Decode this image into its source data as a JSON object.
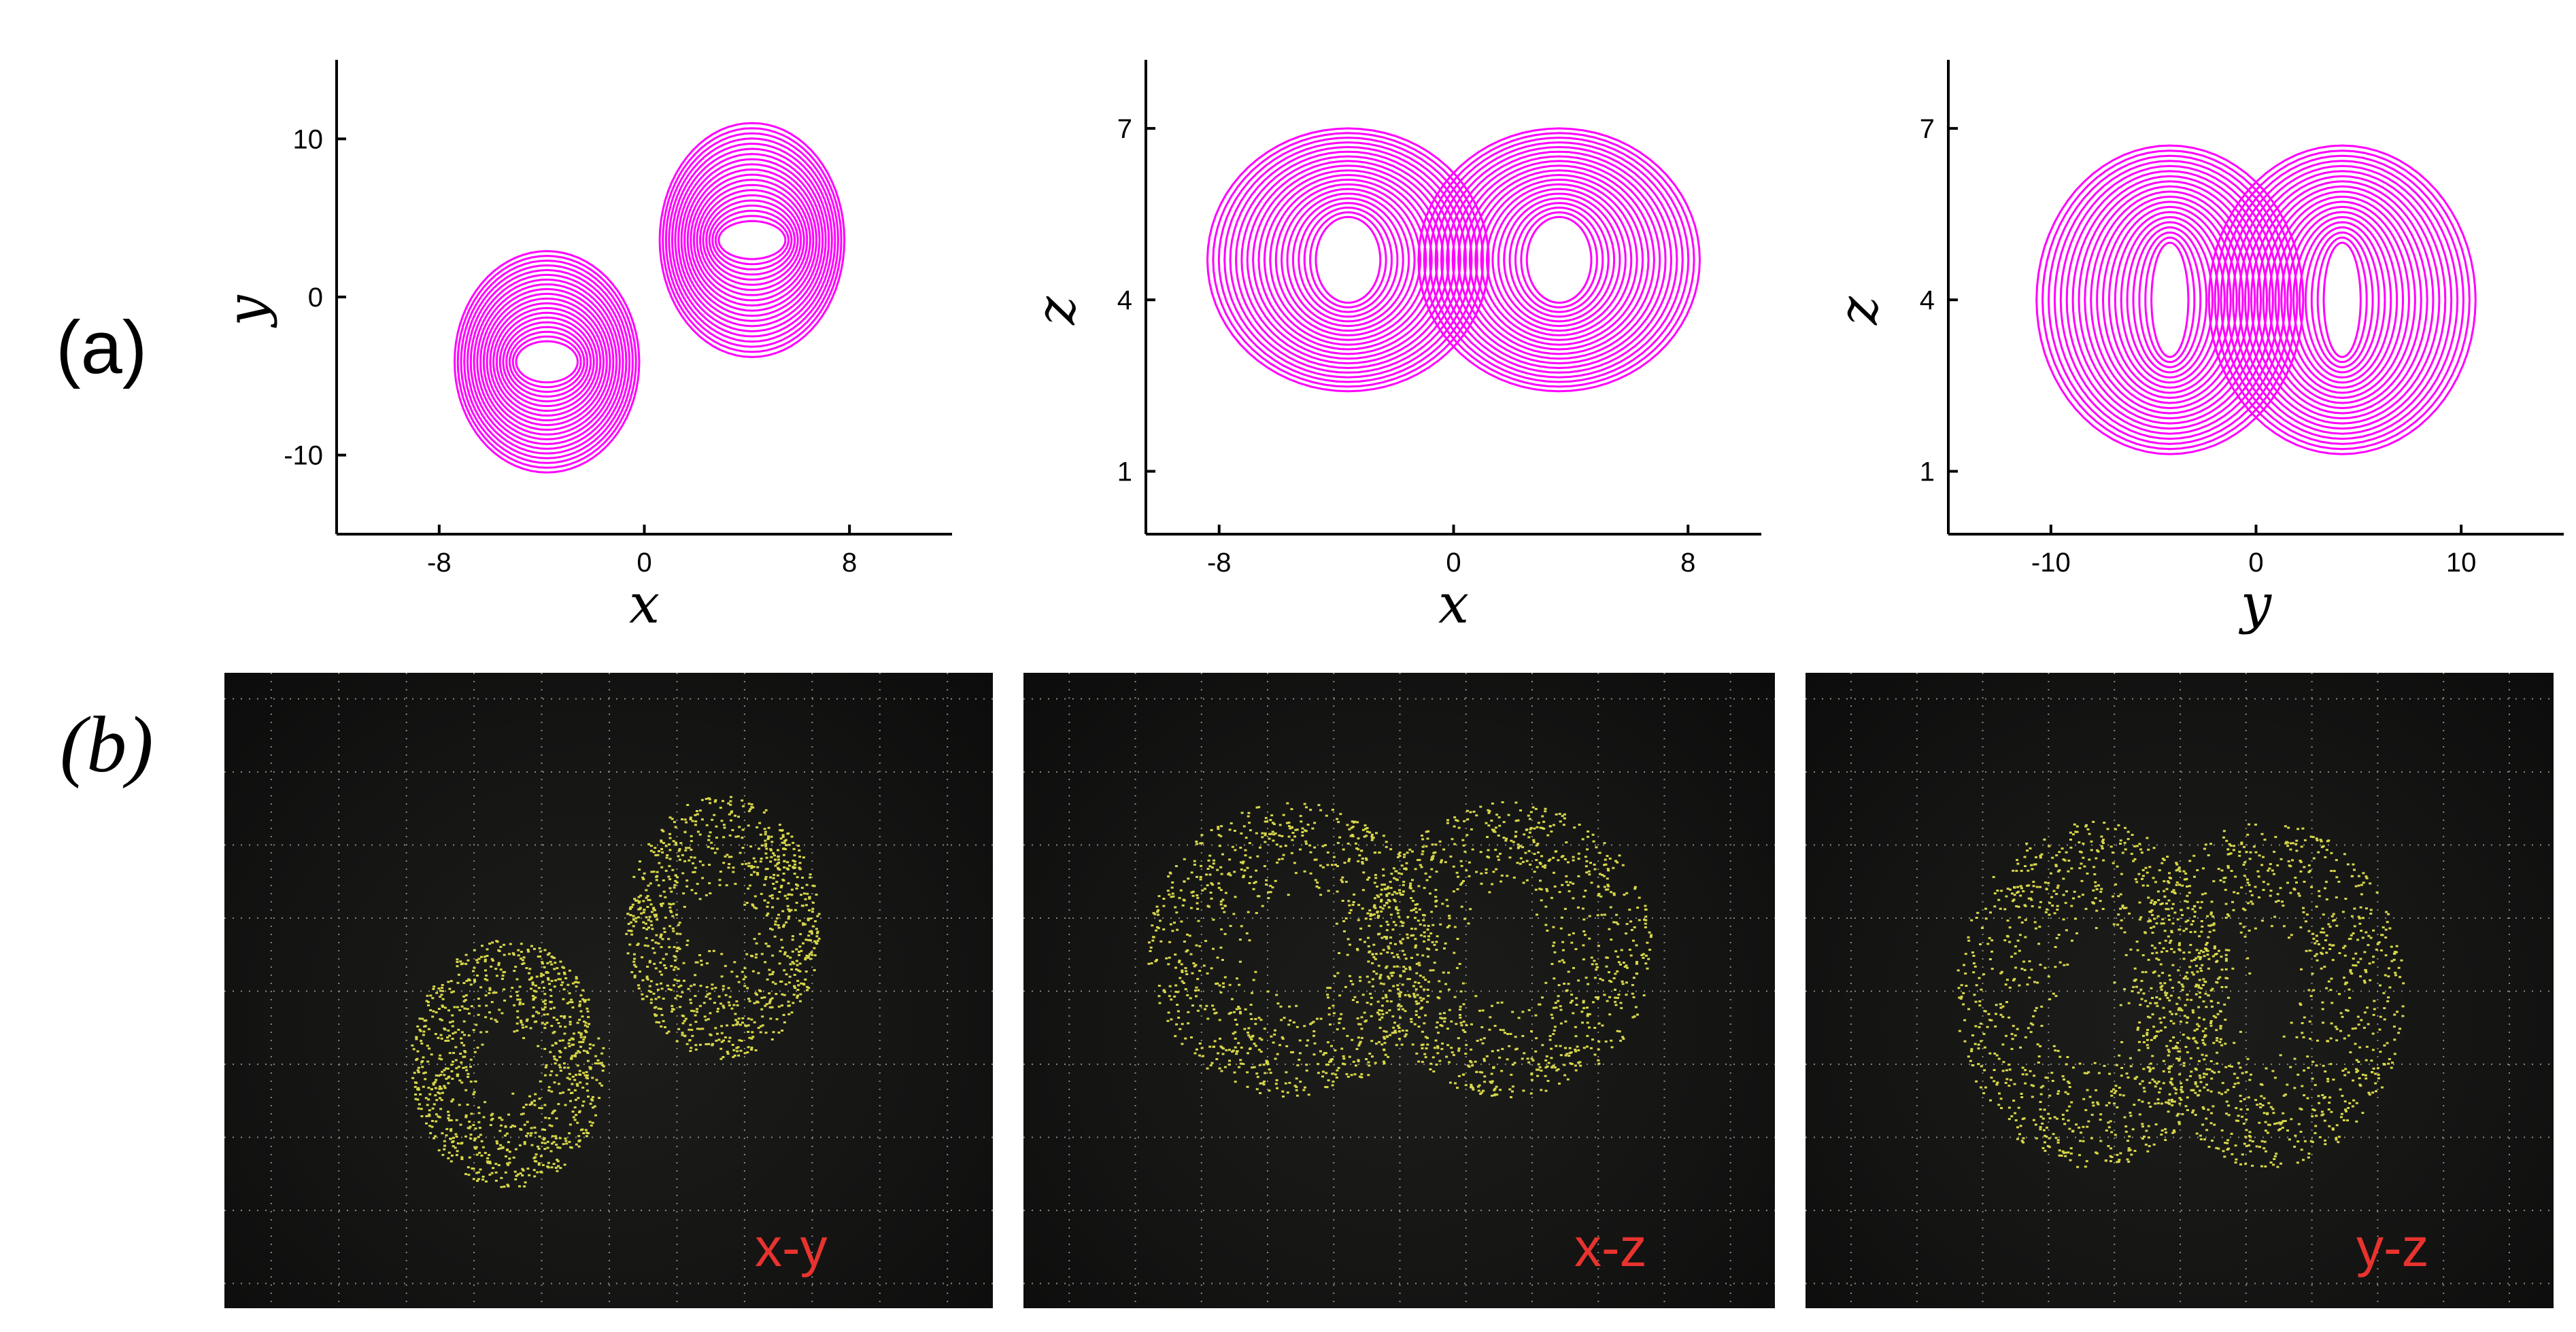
{
  "figure": {
    "label_a": "(a)",
    "label_b": "(b)",
    "colors": {
      "simulation": "#ff00ff",
      "oscilloscope_trace": "#d8d84a",
      "tag": "#e8332e",
      "screen": "#141413"
    }
  },
  "chart_data": [
    {
      "type": "line",
      "panel": "(a)",
      "description_kind": "phase portrait",
      "xlabel": "x",
      "ylabel": "y",
      "xlim": [
        -12,
        12
      ],
      "ylim": [
        -15,
        15
      ],
      "xticks": [
        -8,
        0,
        8
      ],
      "yticks": [
        -10,
        0,
        10
      ],
      "wings": [
        {
          "center": [
            4.2,
            3.6
          ],
          "inner": [
            1.3,
            1.2
          ],
          "outer": [
            3.6,
            7.4
          ]
        },
        {
          "center": [
            -3.8,
            -4.1
          ],
          "inner": [
            1.2,
            1.3
          ],
          "outer": [
            3.6,
            7.0
          ]
        }
      ],
      "color": "#ff00ff"
    },
    {
      "type": "line",
      "panel": "(a)",
      "description_kind": "phase portrait",
      "xlabel": "x",
      "ylabel": "z",
      "xlim": [
        -10.5,
        10.5
      ],
      "ylim": [
        -0.1,
        8.2
      ],
      "xticks": [
        -8,
        0,
        8
      ],
      "yticks": [
        1,
        4,
        7
      ],
      "wings": [
        {
          "center": [
            -3.6,
            4.7
          ],
          "inner": [
            1.1,
            0.75
          ],
          "outer": [
            4.8,
            2.3
          ]
        },
        {
          "center": [
            3.6,
            4.7
          ],
          "inner": [
            1.1,
            0.75
          ],
          "outer": [
            4.8,
            2.3
          ]
        }
      ],
      "color": "#ff00ff"
    },
    {
      "type": "line",
      "panel": "(a)",
      "description_kind": "phase portrait",
      "xlabel": "y",
      "ylabel": "z",
      "xlim": [
        -15,
        15
      ],
      "ylim": [
        -0.1,
        8.2
      ],
      "xticks": [
        -10,
        0,
        10
      ],
      "yticks": [
        1,
        4,
        7
      ],
      "wings": [
        {
          "center": [
            -4.2,
            4.0
          ],
          "inner": [
            0.9,
            1.0
          ],
          "outer": [
            6.5,
            2.7
          ]
        },
        {
          "center": [
            4.2,
            4.0
          ],
          "inner": [
            0.9,
            1.0
          ],
          "outer": [
            6.5,
            2.7
          ]
        }
      ],
      "color": "#ff00ff"
    }
  ],
  "oscilloscope": [
    {
      "tag": "x-y"
    },
    {
      "tag": "x-z"
    },
    {
      "tag": "y-z"
    }
  ]
}
